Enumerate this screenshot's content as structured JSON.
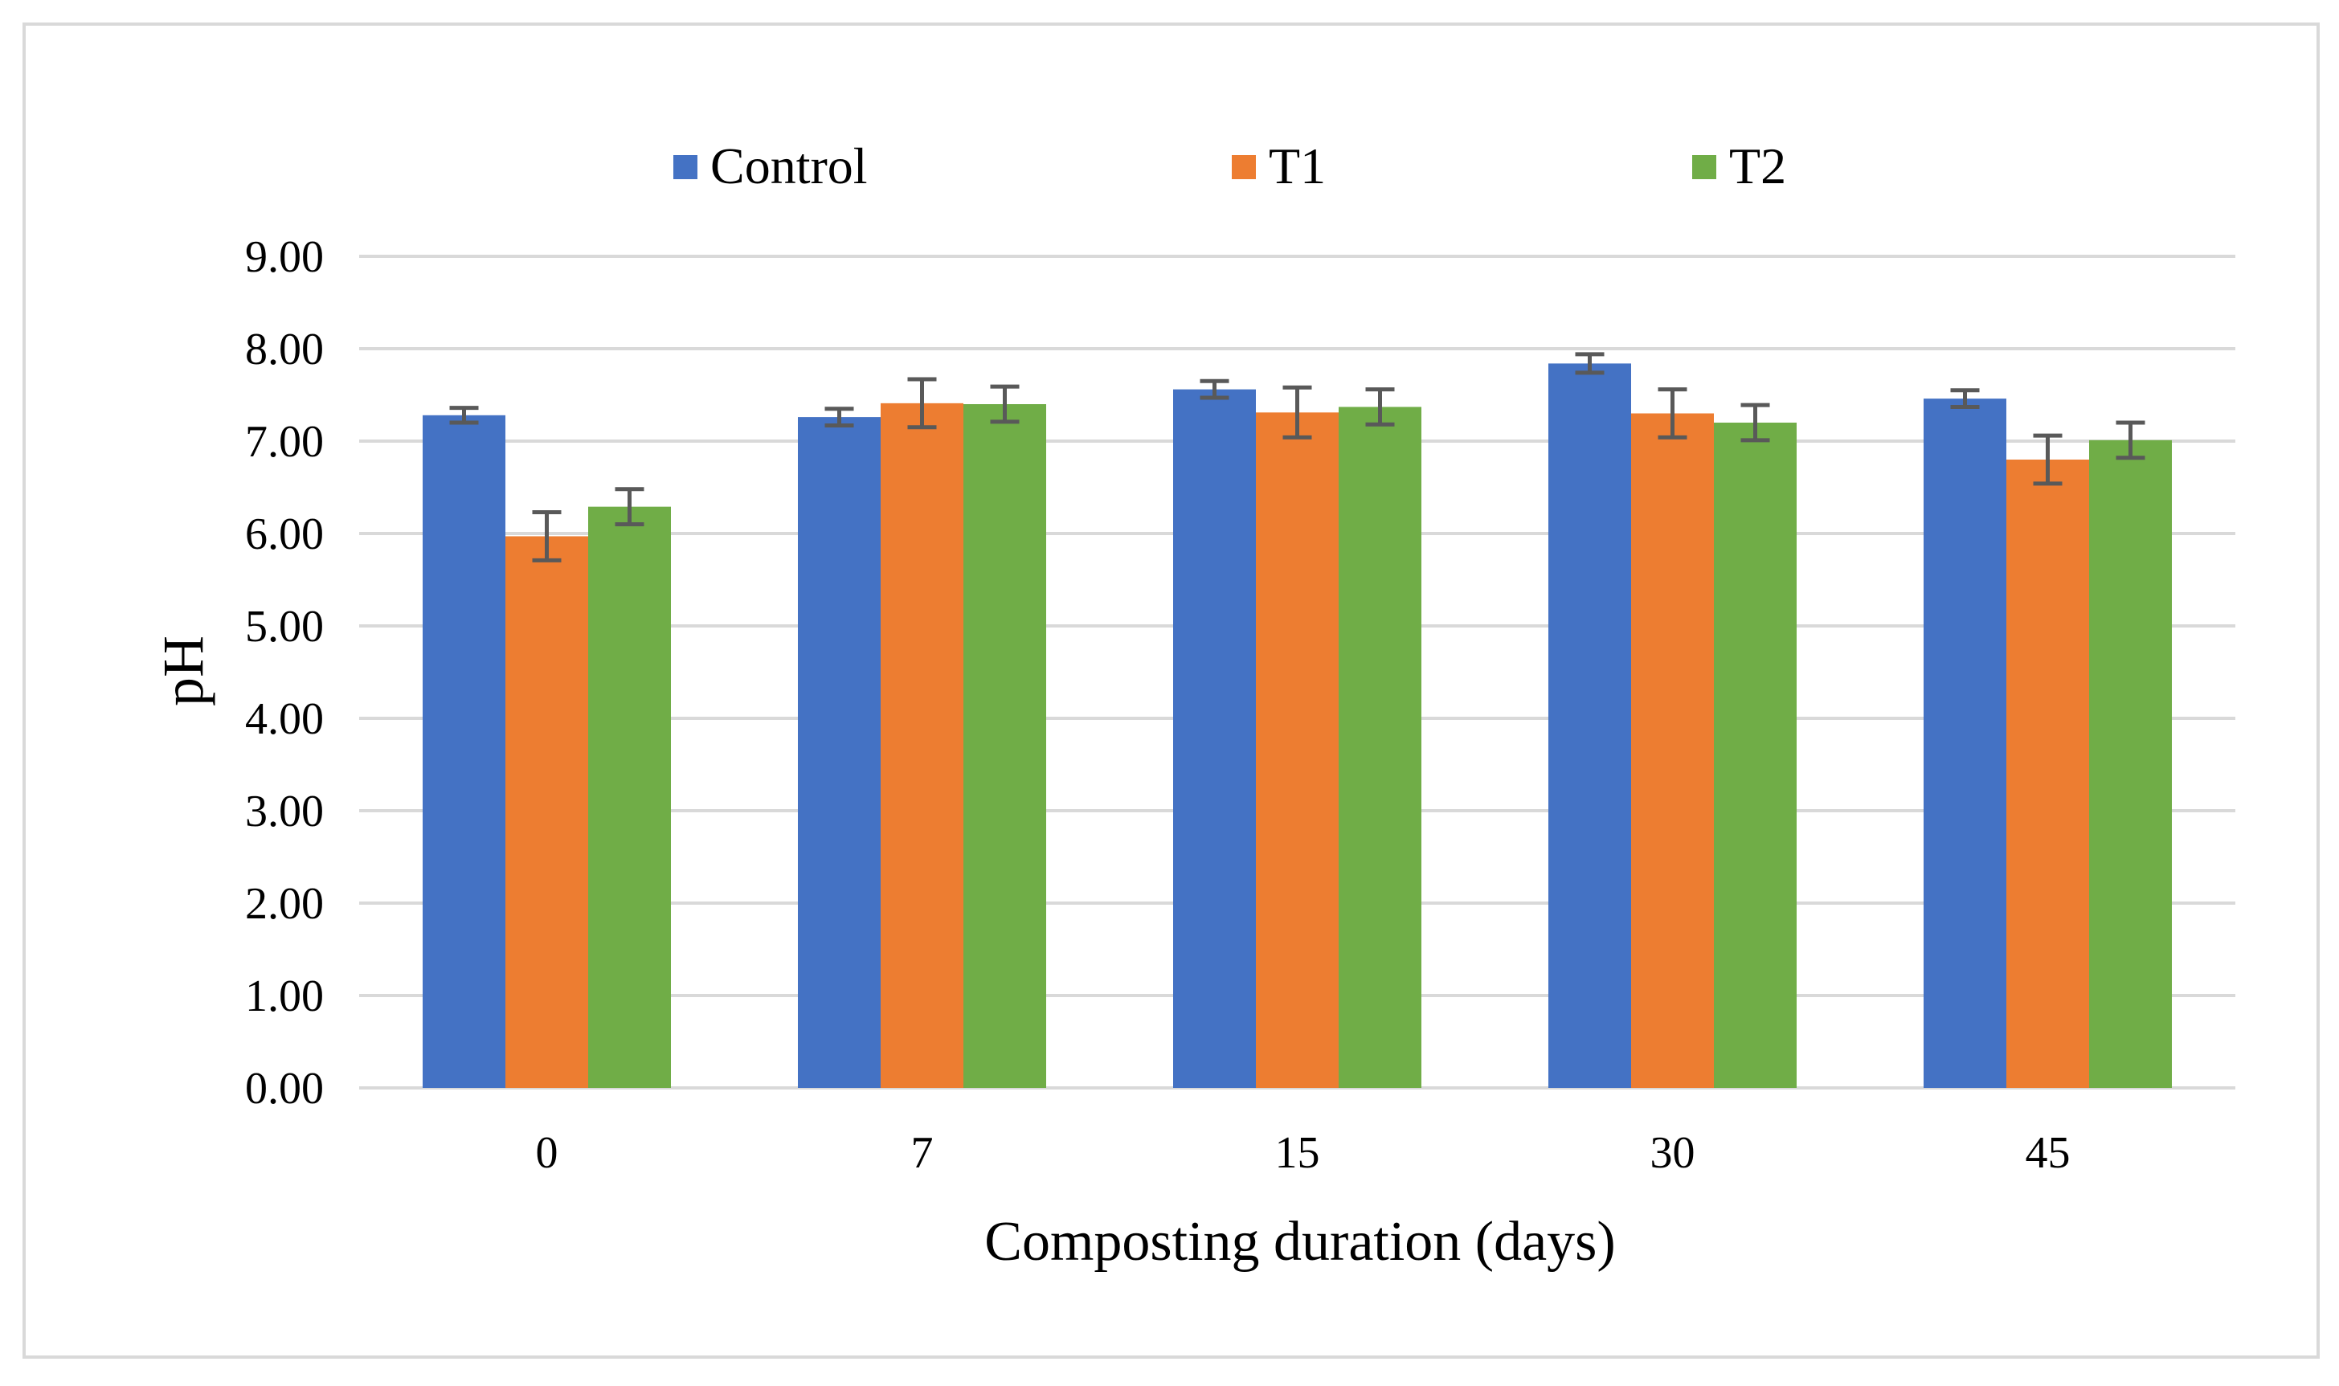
{
  "chart_data": {
    "type": "bar",
    "title": "",
    "xlabel": "Composting duration (days)",
    "ylabel": "pH",
    "categories": [
      "0",
      "7",
      "15",
      "30",
      "45"
    ],
    "ylim": [
      0,
      9
    ],
    "yticks": [
      "0.00",
      "1.00",
      "2.00",
      "3.00",
      "4.00",
      "5.00",
      "6.00",
      "7.00",
      "8.00",
      "9.00"
    ],
    "grid": true,
    "legend_position": "top",
    "series": [
      {
        "name": "Control",
        "color": "#4472C4",
        "values": [
          7.28,
          7.26,
          7.56,
          7.84,
          7.46
        ],
        "errors": [
          0.08,
          0.09,
          0.09,
          0.1,
          0.09
        ]
      },
      {
        "name": "T1",
        "color": "#ED7D31",
        "values": [
          5.97,
          7.41,
          7.31,
          7.3,
          6.8
        ],
        "errors": [
          0.26,
          0.26,
          0.27,
          0.26,
          0.26
        ]
      },
      {
        "name": "T2",
        "color": "#70AD47",
        "values": [
          6.29,
          7.4,
          7.37,
          7.2,
          7.01
        ],
        "errors": [
          0.19,
          0.19,
          0.19,
          0.19,
          0.19
        ]
      }
    ],
    "error_bar_color": "#595959",
    "gridline_color": "#D9D9D9",
    "frame_color": "#D9D9D9"
  }
}
